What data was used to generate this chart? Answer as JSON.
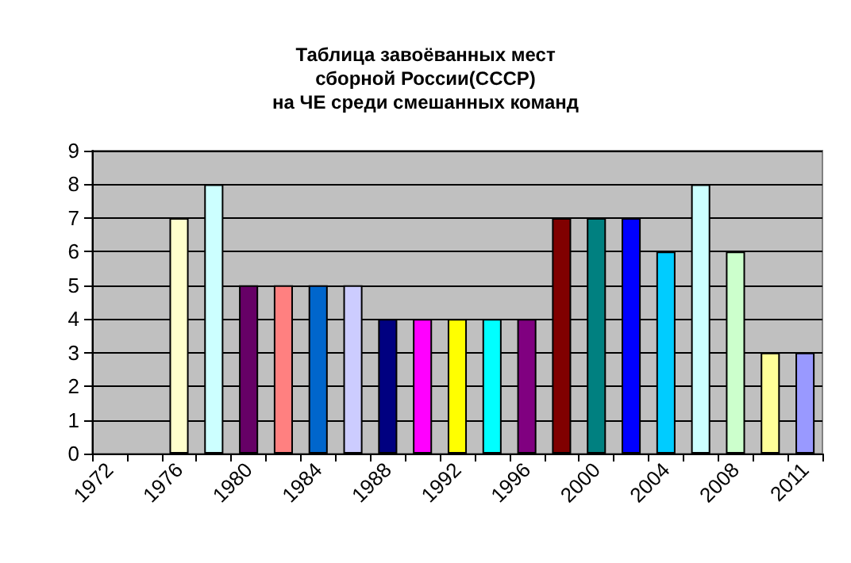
{
  "chart_data": {
    "type": "bar",
    "title": "Таблица завоёванных мест\nсборной России(СССР)\nна ЧЕ среди смешанных команд",
    "categories": [
      "1972",
      null,
      "1976",
      null,
      "1980",
      null,
      "1984",
      null,
      "1988",
      null,
      "1992",
      null,
      "1996",
      null,
      "2000",
      null,
      "2004",
      null,
      "2008",
      null,
      "2011"
    ],
    "values": [
      null,
      null,
      7,
      8,
      5,
      5,
      5,
      5,
      4,
      4,
      4,
      4,
      4,
      7,
      7,
      7,
      6,
      8,
      6,
      3,
      3
    ],
    "colors": [
      "#ffffcc",
      "#ffffcc",
      "#ffffcc",
      "#ccffff",
      "#660066",
      "#ff8080",
      "#0066cc",
      "#ccccff",
      "#000080",
      "#ff00ff",
      "#ffff00",
      "#00ffff",
      "#800080",
      "#800000",
      "#008080",
      "#0000ff",
      "#00ccff",
      "#ccffff",
      "#ccffcc",
      "#ffff99",
      "#9999ff"
    ],
    "ylim": [
      0,
      9
    ],
    "yticks": [
      0,
      1,
      2,
      3,
      4,
      5,
      6,
      7,
      8,
      9
    ],
    "grid": "y"
  }
}
